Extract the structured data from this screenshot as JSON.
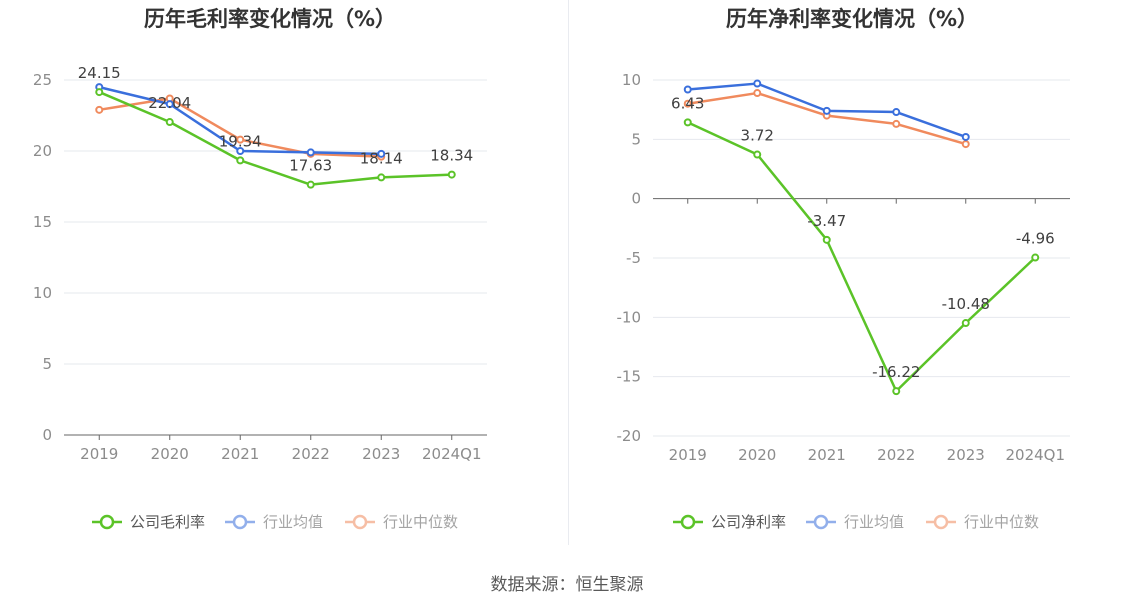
{
  "source": "数据来源：恒生聚源",
  "chart_data": [
    {
      "type": "line",
      "title": "历年毛利率变化情况（%）",
      "categories": [
        "2019",
        "2020",
        "2021",
        "2022",
        "2023",
        "2024Q1"
      ],
      "ylim": [
        0,
        25
      ],
      "yticks": [
        0,
        5,
        10,
        15,
        20,
        25
      ],
      "grid": true,
      "legend_position": "bottom",
      "series": [
        {
          "name": "公司毛利率",
          "color": "#5bc328",
          "values": [
            24.15,
            22.04,
            19.34,
            17.63,
            18.14,
            18.34
          ],
          "labels": [
            "24.15",
            "22.04",
            "19.34",
            "17.63",
            "18.14",
            "18.34"
          ]
        },
        {
          "name": "行业均值",
          "color": "#3a6fdc",
          "values": [
            24.5,
            23.3,
            20.0,
            19.9,
            19.8,
            null
          ]
        },
        {
          "name": "行业中位数",
          "color": "#f08a5d",
          "values": [
            22.9,
            23.7,
            20.8,
            19.8,
            19.6,
            null
          ]
        }
      ]
    },
    {
      "type": "line",
      "title": "历年净利率变化情况（%）",
      "categories": [
        "2019",
        "2020",
        "2021",
        "2022",
        "2023",
        "2024Q1"
      ],
      "ylim": [
        -20,
        10
      ],
      "yticks": [
        -20,
        -15,
        -10,
        -5,
        0,
        5,
        10
      ],
      "grid": true,
      "legend_position": "bottom",
      "series": [
        {
          "name": "公司净利率",
          "color": "#5bc328",
          "values": [
            6.43,
            3.72,
            -3.47,
            -16.22,
            -10.48,
            -4.96
          ],
          "labels": [
            "6.43",
            "3.72",
            "-3.47",
            "-16.22",
            "-10.48",
            "-4.96"
          ]
        },
        {
          "name": "行业均值",
          "color": "#3a6fdc",
          "values": [
            9.2,
            9.7,
            7.4,
            7.3,
            5.2,
            null
          ]
        },
        {
          "name": "行业中位数",
          "color": "#f08a5d",
          "values": [
            8.0,
            8.9,
            7.0,
            6.3,
            4.6,
            null
          ]
        }
      ]
    }
  ]
}
